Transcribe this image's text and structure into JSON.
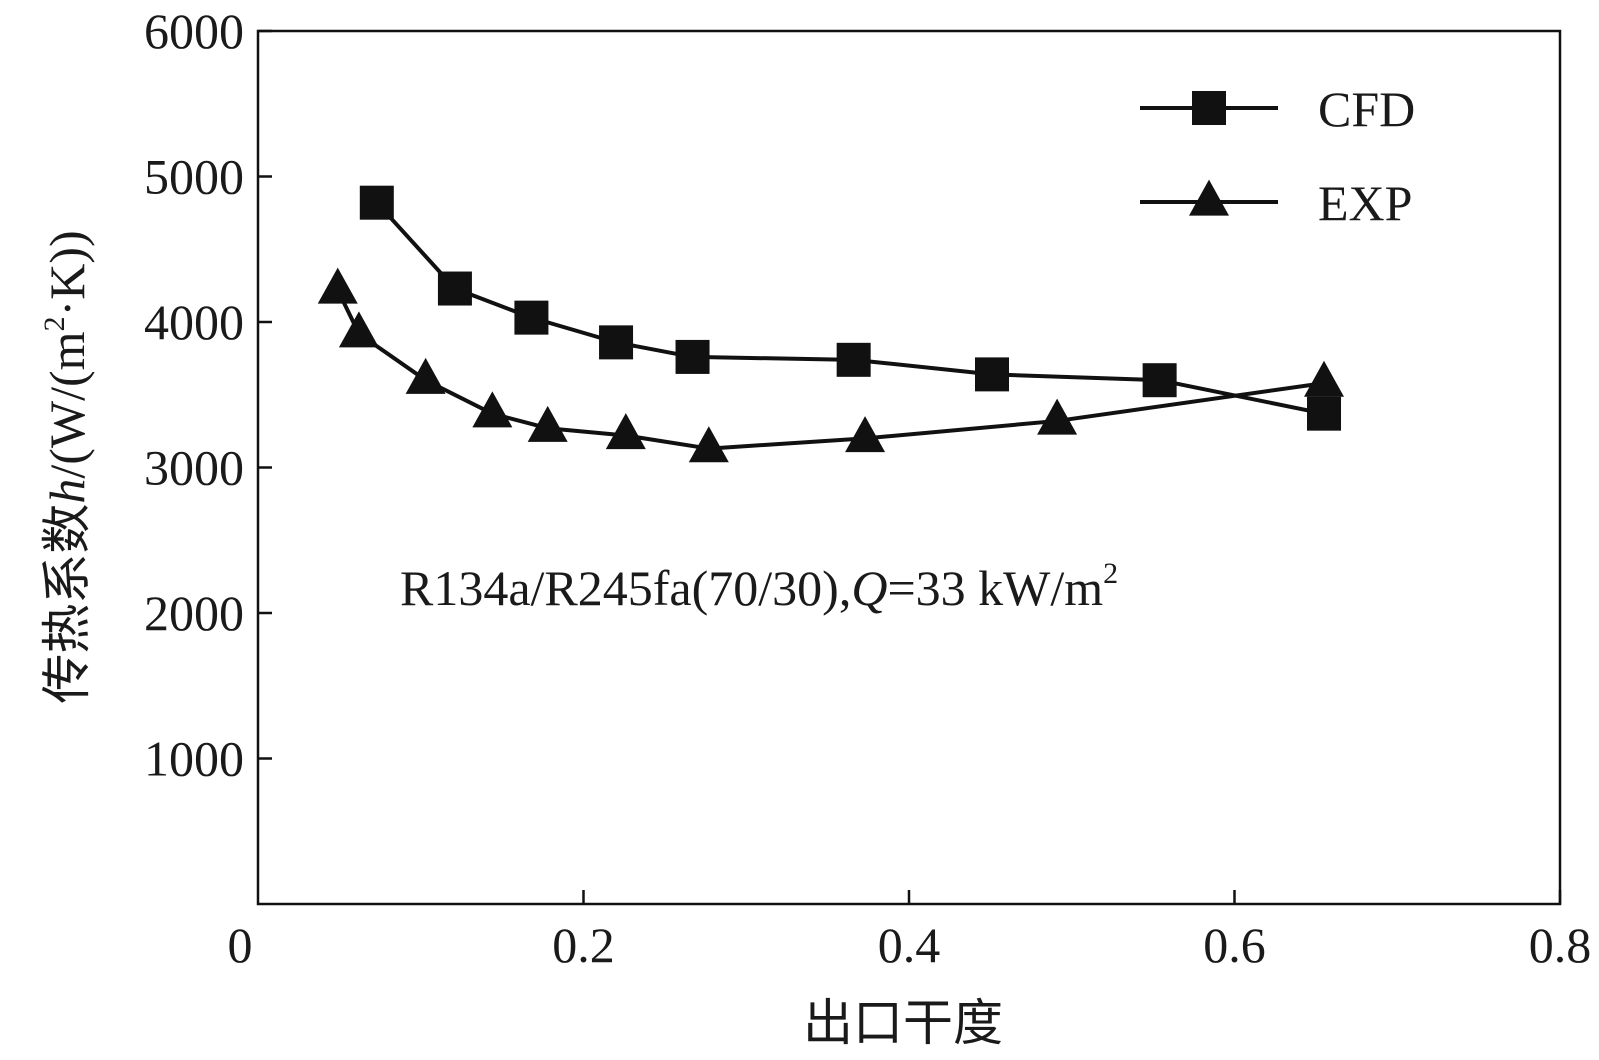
{
  "chart_data": {
    "type": "line",
    "xlabel": "出口干度",
    "ylabel": "传热系数h/(W/(m²·K))",
    "ylabel_parts": {
      "prefix": "传热系数",
      "symbol": "h",
      "unit_pre": "/(W/(m",
      "sup": "2",
      "unit_post": "·K))"
    },
    "xlim": [
      0,
      0.8
    ],
    "ylim": [
      0,
      6000
    ],
    "x_ticks": [
      0.2,
      0.4,
      0.6,
      0.8
    ],
    "y_ticks": [
      1000,
      2000,
      3000,
      4000,
      5000,
      6000
    ],
    "x_tick_labels": [
      "0.2",
      "0.4",
      "0.6",
      "0.8"
    ],
    "y_tick_labels": [
      "1000",
      "2000",
      "3000",
      "4000",
      "5000",
      "6000"
    ],
    "origin_label": "0",
    "grid": false,
    "legend_position": "top-right",
    "annotation": {
      "prefix": "R134a/R245fa(70/30),",
      "italic": "Q",
      "mid": "=33 kW/m",
      "sup": "2"
    },
    "series": [
      {
        "name": "CFD",
        "marker": "square",
        "color": "#111111",
        "x": [
          0.073,
          0.121,
          0.168,
          0.22,
          0.267,
          0.366,
          0.451,
          0.554,
          0.655
        ],
        "y": [
          4820,
          4230,
          4030,
          3860,
          3760,
          3740,
          3640,
          3600,
          3370
        ]
      },
      {
        "name": "EXP",
        "marker": "triangle",
        "color": "#111111",
        "x": [
          0.049,
          0.062,
          0.103,
          0.144,
          0.178,
          0.226,
          0.277,
          0.373,
          0.491,
          0.655
        ],
        "y": [
          4220,
          3920,
          3600,
          3370,
          3270,
          3220,
          3130,
          3200,
          3320,
          3580
        ]
      }
    ]
  }
}
